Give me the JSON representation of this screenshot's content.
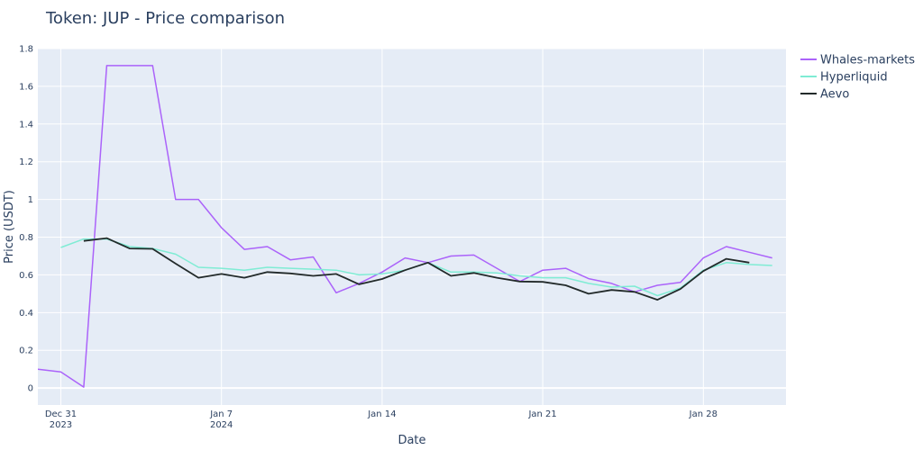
{
  "chart_data": {
    "type": "line",
    "title": "Token: JUP - Price comparison",
    "xlabel": "Date",
    "ylabel": "Price (USDT)",
    "ylim": [
      -0.09,
      1.8
    ],
    "xlim": [
      -1,
      31.6
    ],
    "grid": true,
    "legend_position": "top-right",
    "yticks": [
      {
        "value": 0,
        "label": "0"
      },
      {
        "value": 0.2,
        "label": "0.2"
      },
      {
        "value": 0.4,
        "label": "0.4"
      },
      {
        "value": 0.6,
        "label": "0.6"
      },
      {
        "value": 0.8,
        "label": "0.8"
      },
      {
        "value": 1.0,
        "label": "1"
      },
      {
        "value": 1.2,
        "label": "1.2"
      },
      {
        "value": 1.4,
        "label": "1.4"
      },
      {
        "value": 1.6,
        "label": "1.6"
      },
      {
        "value": 1.8,
        "label": "1.8"
      }
    ],
    "xticks": [
      {
        "day": 0,
        "label": "Dec 31",
        "sublabel": "2023"
      },
      {
        "day": 7,
        "label": "Jan 7",
        "sublabel": "2024"
      },
      {
        "day": 14,
        "label": "Jan 14",
        "sublabel": ""
      },
      {
        "day": 21,
        "label": "Jan 21",
        "sublabel": ""
      },
      {
        "day": 28,
        "label": "Jan 28",
        "sublabel": ""
      }
    ],
    "series": [
      {
        "name": "Whales-markets",
        "color": "#ab63fa",
        "x": [
          -1,
          0,
          1,
          2,
          3,
          4,
          5,
          6,
          7,
          8,
          9,
          10,
          11,
          12,
          13,
          14,
          15,
          16,
          17,
          18,
          19,
          20,
          21,
          22,
          23,
          24,
          25,
          26,
          27,
          28,
          29,
          30,
          31
        ],
        "y": [
          0.1,
          0.085,
          0.005,
          1.71,
          1.71,
          1.71,
          1.0,
          1.0,
          0.85,
          0.735,
          0.75,
          0.68,
          0.695,
          0.505,
          0.555,
          0.615,
          0.69,
          0.665,
          0.7,
          0.705,
          0.635,
          0.565,
          0.625,
          0.635,
          0.58,
          0.555,
          0.51,
          0.545,
          0.56,
          0.69,
          0.75,
          0.72,
          0.69
        ]
      },
      {
        "name": "Hyperliquid",
        "color": "#7fecd4",
        "x": [
          0,
          1,
          2,
          3,
          4,
          5,
          6,
          7,
          8,
          9,
          10,
          11,
          12,
          13,
          14,
          15,
          16,
          17,
          18,
          19,
          20,
          21,
          22,
          23,
          24,
          25,
          26,
          27,
          28,
          29,
          30,
          31
        ],
        "y": [
          0.745,
          0.79,
          0.79,
          0.75,
          0.74,
          0.71,
          0.64,
          0.635,
          0.625,
          0.64,
          0.635,
          0.63,
          0.625,
          0.6,
          0.605,
          0.625,
          0.665,
          0.615,
          0.615,
          0.61,
          0.595,
          0.585,
          0.585,
          0.555,
          0.535,
          0.54,
          0.49,
          0.53,
          0.625,
          0.665,
          0.655,
          0.65
        ]
      },
      {
        "name": "Aevo",
        "color": "#222a2a",
        "x": [
          1,
          2,
          3,
          4,
          5,
          6,
          7,
          8,
          9,
          10,
          11,
          12,
          13,
          14,
          15,
          16,
          17,
          18,
          19,
          20,
          21,
          22,
          23,
          24,
          25,
          26,
          27,
          28,
          29,
          30
        ],
        "y": [
          0.78,
          0.795,
          0.74,
          0.738,
          0.66,
          0.585,
          0.605,
          0.585,
          0.615,
          0.608,
          0.595,
          0.605,
          0.55,
          0.578,
          0.625,
          0.665,
          0.595,
          0.61,
          0.585,
          0.565,
          0.563,
          0.545,
          0.5,
          0.52,
          0.51,
          0.468,
          0.525,
          0.62,
          0.685,
          0.665
        ]
      }
    ]
  }
}
